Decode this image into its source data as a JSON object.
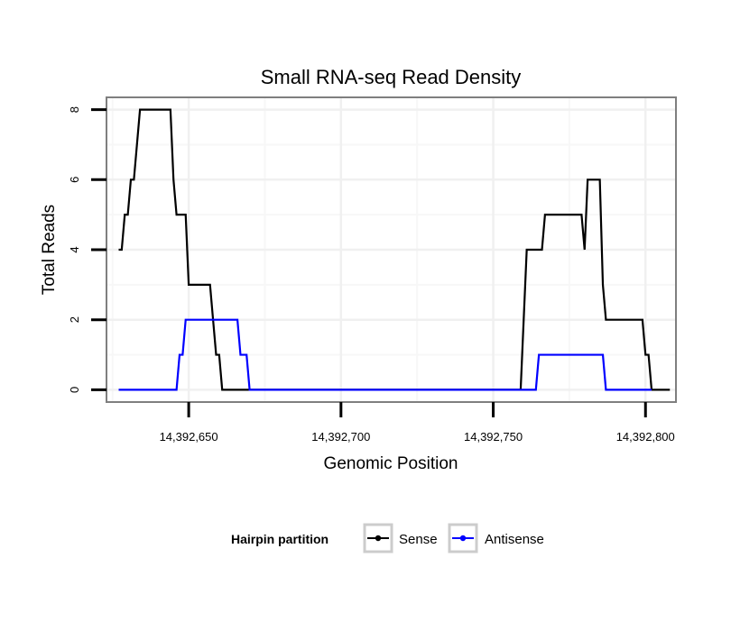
{
  "chart_data": {
    "type": "line",
    "title": "Small RNA-seq Read Density",
    "xlabel": "Genomic Position",
    "ylabel": "Total Reads",
    "xlim": [
      14392623,
      14392810
    ],
    "ylim": [
      -0.35,
      8.35
    ],
    "x_ticks": [
      14392650,
      14392700,
      14392750,
      14392800
    ],
    "x_tick_labels": [
      "14,392,650",
      "14,392,700",
      "14,392,750",
      "14,392,800"
    ],
    "y_ticks": [
      0,
      2,
      4,
      6,
      8
    ],
    "y_tick_labels": [
      "0",
      "2",
      "4",
      "6",
      "8"
    ],
    "grid": true,
    "legend": {
      "title": "Hairpin partition",
      "position": "bottom"
    },
    "series": [
      {
        "name": "Sense",
        "color": "#000000",
        "points": [
          [
            14392627,
            4
          ],
          [
            14392628,
            4
          ],
          [
            14392629,
            5
          ],
          [
            14392630,
            5
          ],
          [
            14392631,
            6
          ],
          [
            14392632,
            6
          ],
          [
            14392634,
            8
          ],
          [
            14392644,
            8
          ],
          [
            14392645,
            6
          ],
          [
            14392646,
            5
          ],
          [
            14392649,
            5
          ],
          [
            14392650,
            3
          ],
          [
            14392657,
            3
          ],
          [
            14392658,
            2
          ],
          [
            14392659,
            1
          ],
          [
            14392660,
            1
          ],
          [
            14392661,
            0
          ],
          [
            14392759,
            0
          ],
          [
            14392760,
            2
          ],
          [
            14392761,
            4
          ],
          [
            14392766,
            4
          ],
          [
            14392767,
            5
          ],
          [
            14392779,
            5
          ],
          [
            14392780,
            4
          ],
          [
            14392781,
            6
          ],
          [
            14392785,
            6
          ],
          [
            14392786,
            3
          ],
          [
            14392787,
            2
          ],
          [
            14392799,
            2
          ],
          [
            14392800,
            1
          ],
          [
            14392801,
            1
          ],
          [
            14392802,
            0
          ],
          [
            14392808,
            0
          ]
        ]
      },
      {
        "name": "Antisense",
        "color": "#0000ff",
        "points": [
          [
            14392627,
            0
          ],
          [
            14392646,
            0
          ],
          [
            14392647,
            1
          ],
          [
            14392648,
            1
          ],
          [
            14392649,
            2
          ],
          [
            14392666,
            2
          ],
          [
            14392667,
            1
          ],
          [
            14392669,
            1
          ],
          [
            14392670,
            0
          ],
          [
            14392764,
            0
          ],
          [
            14392765,
            1
          ],
          [
            14392786,
            1
          ],
          [
            14392787,
            0
          ],
          [
            14392802,
            0
          ]
        ]
      }
    ]
  }
}
